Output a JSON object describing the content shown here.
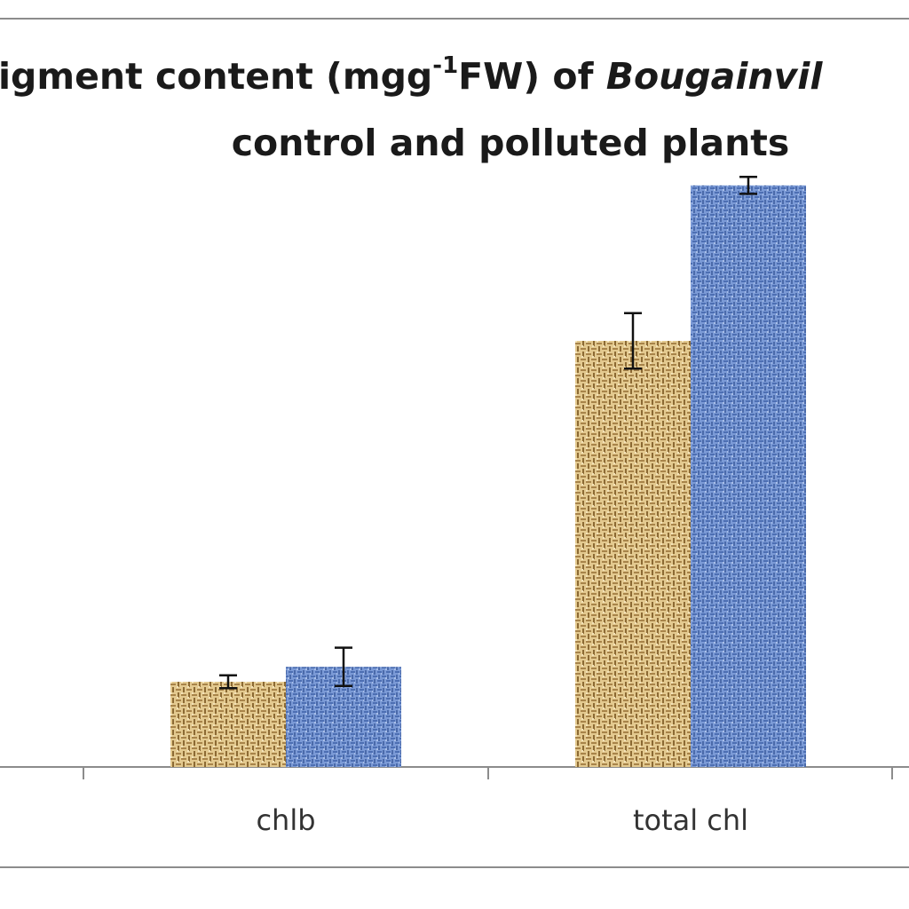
{
  "chart_data": {
    "type": "bar",
    "title": {
      "line1_pre": "igment content (mgg",
      "line1_sup": "-1",
      "line1_mid": "FW) of ",
      "line1_italic": "Bougainvil",
      "line2": "control and polluted plants"
    },
    "categories": [
      "chlb",
      "total chl"
    ],
    "series": [
      {
        "values": [
          0.4,
          2.0
        ],
        "errors": [
          0.03,
          0.13
        ],
        "color": "#d6b97a"
      },
      {
        "values": [
          0.47,
          2.73
        ],
        "errors": [
          0.09,
          0.04
        ],
        "color": "#6d8fcf"
      }
    ],
    "ylim": [
      0,
      3.0
    ],
    "grid": false,
    "legend": "none"
  }
}
